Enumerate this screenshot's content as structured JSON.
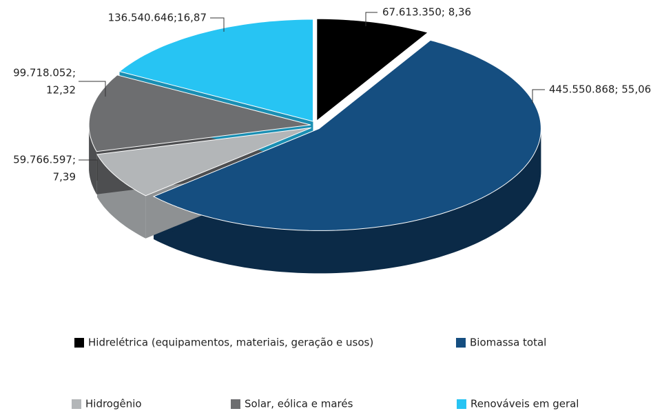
{
  "chart_data": {
    "type": "pie3d",
    "categories": [
      "Hidrelétrica (equipamentos, materiais, geração e usos)",
      "Biomassa total",
      "Hidrogênio",
      "Solar, eólica e marés",
      "Renováveis em geral"
    ],
    "values": [
      67613350,
      445550868,
      59766597,
      99718052,
      136540646
    ],
    "value_labels": [
      [
        "67.613.350; 8,36"
      ],
      [
        "445.550.868; 55,06"
      ],
      [
        "59.766.597;",
        "7,39"
      ],
      [
        "99.718.052;",
        "12,32"
      ],
      [
        "136.540.646;16,87"
      ]
    ],
    "colors": [
      "#000000",
      "#154e80",
      "#b3b6b8",
      "#6d6e70",
      "#27c4f3"
    ],
    "side_colors": [
      "#000000",
      "#0b2a47",
      "#8e9193",
      "#4d4e50",
      "#1a8fb3"
    ],
    "legend": "bottom"
  }
}
